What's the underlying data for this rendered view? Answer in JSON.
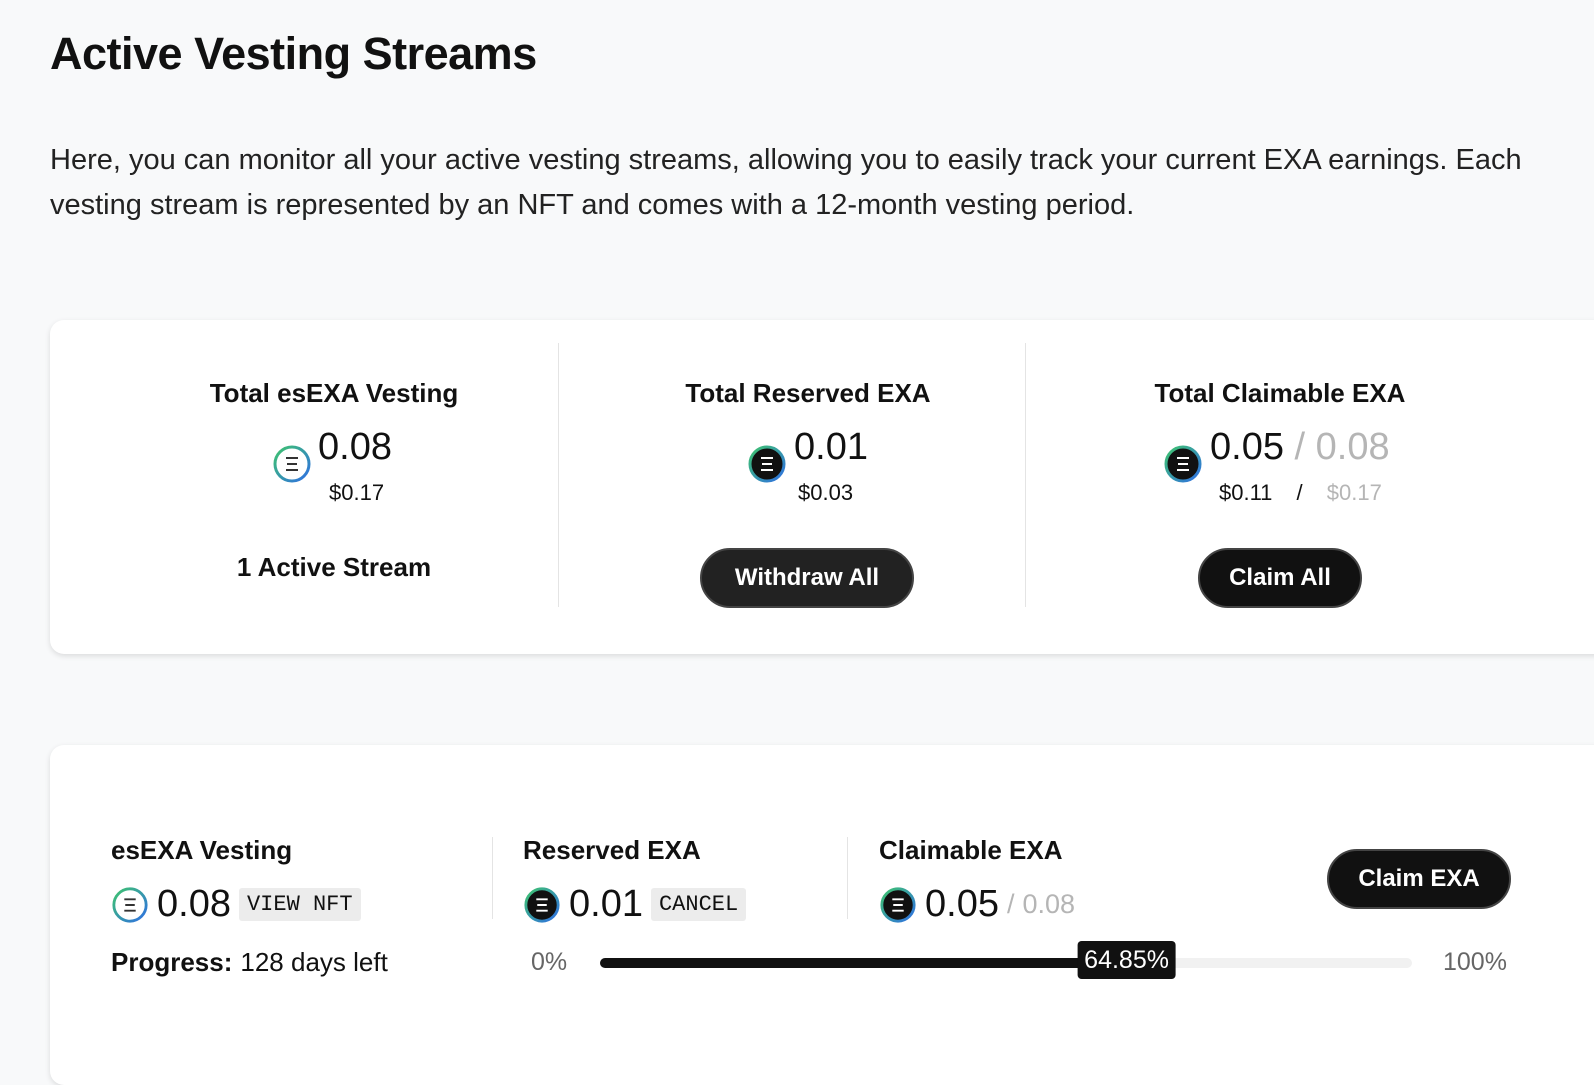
{
  "header": {
    "title": "Active Vesting Streams",
    "description": "Here, you can monitor all your active vesting streams, allowing you to easily track your current EXA earnings. Each vesting stream is represented by an NFT and comes with a 12-month vesting period."
  },
  "summary": {
    "total_vesting": {
      "label": "Total esEXA Vesting",
      "amount": "0.08",
      "usd": "$0.17",
      "streams": "1 Active Stream"
    },
    "total_reserved": {
      "label": "Total Reserved EXA",
      "amount": "0.01",
      "usd": "$0.03",
      "button": "Withdraw All"
    },
    "total_claimable": {
      "label": "Total Claimable EXA",
      "amount": "0.05",
      "separator": "/",
      "amount_total": "0.08",
      "usd": "$0.11",
      "usd_separator": "/",
      "usd_total": "$0.17",
      "button": "Claim All"
    }
  },
  "stream": {
    "vesting": {
      "label": "esEXA Vesting",
      "amount": "0.08",
      "action": "VIEW NFT"
    },
    "reserved": {
      "label": "Reserved EXA",
      "amount": "0.01",
      "action": "CANCEL"
    },
    "claimable": {
      "label": "Claimable EXA",
      "amount": "0.05",
      "separator": "/",
      "amount_total": "0.08"
    },
    "button": "Claim EXA",
    "progress": {
      "label": "Progress:",
      "remaining": "128 days left",
      "start": {
        "value": 0,
        "label": "0%"
      },
      "end": {
        "value": 100,
        "label": "100%"
      },
      "current": {
        "value": 64.85,
        "label": "64.85%"
      }
    }
  }
}
